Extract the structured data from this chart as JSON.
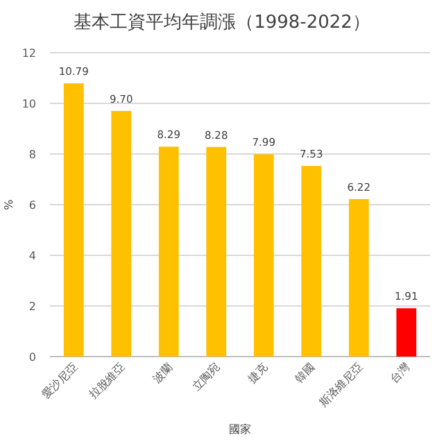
{
  "chart_data": {
    "type": "bar",
    "title": "基本工資平均年調漲（1998-2022）",
    "xlabel": "國家",
    "ylabel": "%",
    "categories": [
      "愛沙尼亞",
      "拉脫維亞",
      "波蘭",
      "立陶宛",
      "捷克",
      "韓國",
      "斯洛維尼亞",
      "台灣"
    ],
    "values": [
      10.79,
      9.7,
      8.29,
      8.28,
      7.99,
      7.53,
      6.22,
      1.91
    ],
    "value_labels": [
      "10.79",
      "9.70",
      "8.29",
      "8.28",
      "7.99",
      "7.53",
      "6.22",
      "1.91"
    ],
    "colors": [
      "#ffc000",
      "#ffc000",
      "#ffc000",
      "#ffc000",
      "#ffc000",
      "#ffc000",
      "#ffc000",
      "#ff0000"
    ],
    "ylim": [
      0,
      12
    ],
    "yticks": [
      0,
      2,
      4,
      6,
      8,
      10,
      12
    ],
    "grid": "y"
  }
}
